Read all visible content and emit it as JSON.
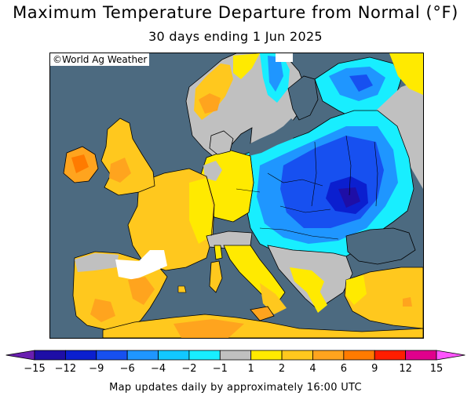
{
  "title": "Maximum Temperature Departure from Normal (°F)",
  "subtitle": "30 days ending 1 Jun 2025",
  "credit": "©World Ag Weather",
  "footer": "Map updates daily by approximately 16:00 UTC",
  "colors": {
    "sea": "#4c6a80",
    "border": "#000000",
    "no_data": "#ffffff"
  },
  "legend": {
    "labels": [
      "−15",
      "−12",
      "−9",
      "−6",
      "−4",
      "−2",
      "−1",
      "1",
      "2",
      "4",
      "6",
      "9",
      "12",
      "15"
    ],
    "colors": [
      "#6a1fb0",
      "#1e0ea6",
      "#0b1fcf",
      "#1750f0",
      "#1f96ff",
      "#12c8ff",
      "#18eeff",
      "#c0c0c0",
      "#ffea00",
      "#ffc81e",
      "#ffa41e",
      "#ff7b00",
      "#ff1e00",
      "#e0008c",
      "#ff55ff"
    ]
  }
}
